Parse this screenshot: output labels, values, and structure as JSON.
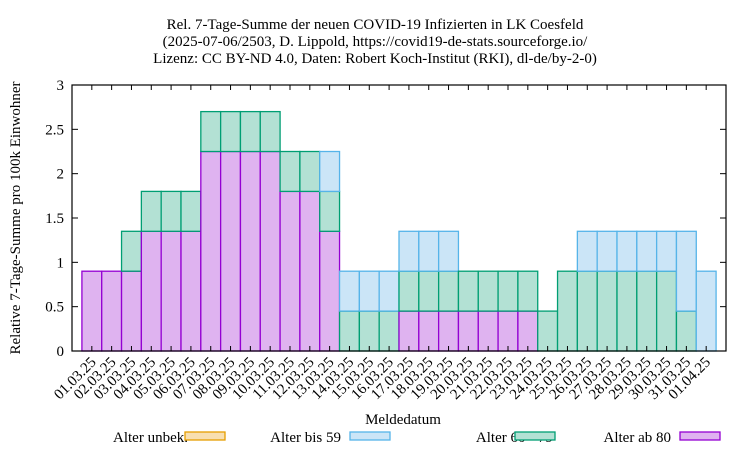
{
  "chart_data": {
    "type": "bar",
    "stacked": true,
    "title": [
      "Rel. 7-Tage-Summe der neuen COVID-19 Infizierten in LK Coesfeld",
      "(2025-07-06/2503, D. Lippold, https://covid19-de-stats.sourceforge.io/",
      "Lizenz: CC BY-ND 4.0, Daten: Robert Koch-Institut (RKI), dl-de/by-2-0)"
    ],
    "xlabel": "Meldedatum",
    "ylabel": "Relative 7-Tage-Summe pro 100k Einwohner",
    "ylim": [
      0,
      3
    ],
    "yticks": [
      "0",
      "0.5",
      "1",
      "1.5",
      "2",
      "2.5",
      "3"
    ],
    "yticks_values": [
      0,
      0.5,
      1,
      1.5,
      2,
      2.5,
      3
    ],
    "grid": false,
    "legend_placement": "bottom",
    "categories": [
      "01.03.25",
      "02.03.25",
      "03.03.25",
      "04.03.25",
      "05.03.25",
      "06.03.25",
      "07.03.25",
      "08.03.25",
      "09.03.25",
      "10.03.25",
      "11.03.25",
      "12.03.25",
      "13.03.25",
      "14.03.25",
      "15.03.25",
      "16.03.25",
      "17.03.25",
      "18.03.25",
      "19.03.25",
      "20.03.25",
      "21.03.25",
      "22.03.25",
      "23.03.25",
      "24.03.25",
      "25.03.25",
      "26.03.25",
      "27.03.25",
      "28.03.25",
      "29.03.25",
      "30.03.25",
      "31.03.25",
      "01.04.25"
    ],
    "series": [
      {
        "name": "Alter ab 80",
        "fill": "#dfb3f0",
        "stroke": "#9400d3",
        "values": [
          0.9,
          0.9,
          0.9,
          1.35,
          1.35,
          1.35,
          2.25,
          2.25,
          2.25,
          2.25,
          1.8,
          1.8,
          1.35,
          0,
          0,
          0,
          0.45,
          0.45,
          0.45,
          0.45,
          0.45,
          0.45,
          0.45,
          0,
          0,
          0,
          0,
          0,
          0,
          0,
          0,
          0
        ]
      },
      {
        "name": "Alter 60 - 79",
        "fill": "#b3e1d4",
        "stroke": "#009e73",
        "values": [
          0,
          0,
          0.45,
          0.45,
          0.45,
          0.45,
          0.45,
          0.45,
          0.45,
          0.45,
          0.45,
          0.45,
          0.45,
          0.45,
          0.45,
          0.45,
          0.45,
          0.45,
          0.45,
          0.45,
          0.45,
          0.45,
          0.45,
          0.45,
          0.9,
          0.9,
          0.9,
          0.9,
          0.9,
          0.9,
          0.45,
          0
        ]
      },
      {
        "name": "Alter bis 59",
        "fill": "#cbe5f7",
        "stroke": "#56b4e9",
        "values": [
          0,
          0,
          0,
          0,
          0,
          0,
          0,
          0,
          0,
          0,
          0,
          0,
          0.45,
          0.45,
          0.45,
          0.45,
          0.45,
          0.45,
          0.45,
          0,
          0,
          0,
          0,
          0,
          0,
          0.45,
          0.45,
          0.45,
          0.45,
          0.45,
          0.9,
          0.9
        ]
      },
      {
        "name": "Alter unbek.",
        "fill": "#f8dfb0",
        "stroke": "#e69f00",
        "values": [
          0,
          0,
          0,
          0,
          0,
          0,
          0,
          0,
          0,
          0,
          0,
          0,
          0,
          0,
          0,
          0,
          0,
          0,
          0,
          0,
          0,
          0,
          0,
          0,
          0,
          0,
          0,
          0,
          0,
          0,
          0,
          0
        ]
      }
    ],
    "legend_order": [
      "Alter unbek.",
      "Alter bis 59",
      "Alter 60 - 79",
      "Alter ab 80"
    ]
  }
}
